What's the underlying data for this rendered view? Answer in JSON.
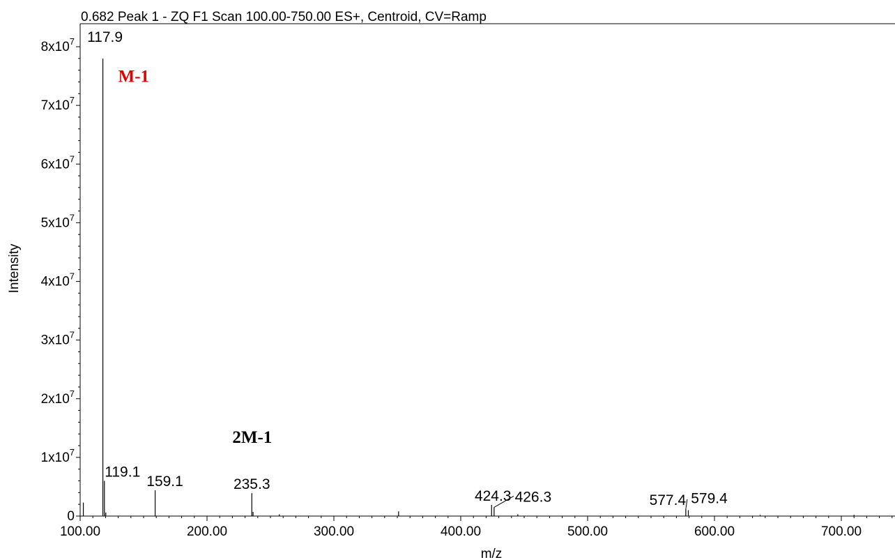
{
  "chart_data": {
    "type": "bar",
    "title": "0.682 Peak 1 - ZQ F1 Scan 100.00-750.00 ES+, Centroid, CV=Ramp",
    "xlabel": "m/z",
    "ylabel": "Intensity",
    "xlim": [
      100,
      740
    ],
    "ylim": [
      0,
      80000000
    ],
    "x_ticks": [
      "100.00",
      "200.00",
      "300.00",
      "400.00",
      "500.00",
      "600.00",
      "700.00"
    ],
    "y_ticks": [
      {
        "base": "0",
        "exp": ""
      },
      {
        "base": "1x10",
        "exp": "7"
      },
      {
        "base": "2x10",
        "exp": "7"
      },
      {
        "base": "3x10",
        "exp": "7"
      },
      {
        "base": "4x10",
        "exp": "7"
      },
      {
        "base": "5x10",
        "exp": "7"
      },
      {
        "base": "6x10",
        "exp": "7"
      },
      {
        "base": "7x10",
        "exp": "7"
      },
      {
        "base": "8x10",
        "exp": "7"
      }
    ],
    "peaks": [
      {
        "x": 102.5,
        "y": 2300000
      },
      {
        "x": 117.9,
        "y": 78000000,
        "label": "117.9"
      },
      {
        "x": 119.1,
        "y": 6000000,
        "label": "119.1"
      },
      {
        "x": 120.2,
        "y": 600000
      },
      {
        "x": 159.1,
        "y": 4400000,
        "label": "159.1"
      },
      {
        "x": 235.3,
        "y": 3900000,
        "label": "235.3"
      },
      {
        "x": 236.3,
        "y": 700000
      },
      {
        "x": 257.0,
        "y": 300000
      },
      {
        "x": 351.0,
        "y": 800000
      },
      {
        "x": 424.3,
        "y": 1900000,
        "label": "424.3"
      },
      {
        "x": 426.3,
        "y": 1500000,
        "label": "426.3"
      },
      {
        "x": 445.0,
        "y": 300000
      },
      {
        "x": 577.4,
        "y": 1200000,
        "label": "577.4"
      },
      {
        "x": 579.4,
        "y": 1000000,
        "label": "579.4"
      },
      {
        "x": 636.0,
        "y": 200000
      },
      {
        "x": 710.0,
        "y": 200000
      }
    ],
    "annotations": [
      {
        "text": "M-1",
        "color": "#e00000",
        "x": 130,
        "y": 74000000
      },
      {
        "text": "2M-1",
        "color": "#000000",
        "x": 220,
        "y": 12500000
      }
    ]
  }
}
